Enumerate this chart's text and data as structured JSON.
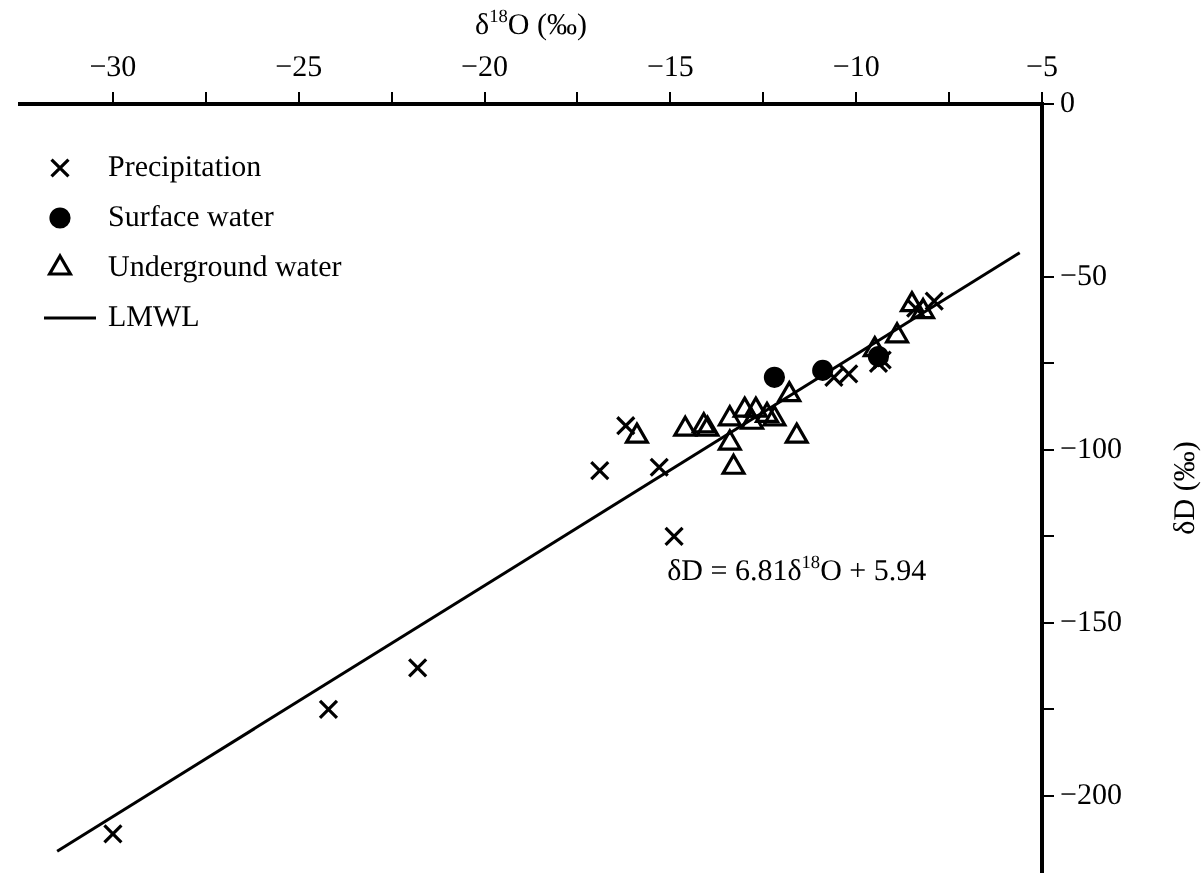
{
  "chart_data": {
    "type": "scatter",
    "xlabel": "δ$^{18}$O (‰)",
    "ylabel": "δD (‰)",
    "xlim": [
      -32.5,
      -5
    ],
    "xticks": [
      -30,
      {
        "value": -27.5,
        "label": null
      },
      -25,
      {
        "value": -22.5,
        "label": null
      },
      -20,
      {
        "value": -17.5,
        "label": null
      },
      -15,
      {
        "value": -12.5,
        "label": null
      },
      -10,
      {
        "value": -7.5,
        "label": null
      },
      -5
    ],
    "ylim": [
      -222,
      0
    ],
    "yticks": [
      0,
      -50,
      {
        "value": -75,
        "label": null
      },
      -100,
      {
        "value": -125,
        "label": null
      },
      -150,
      {
        "value": -175,
        "label": null
      },
      -200
    ],
    "grid": false,
    "legend": "top left",
    "series": [
      {
        "name": "Precipitation",
        "type": "scatter",
        "marker": "cross",
        "color": "#000000",
        "x": [
          -30,
          -24.2,
          -21.8,
          -16.9,
          -15.3,
          -14.9,
          -16.2,
          -8.4,
          -7.9,
          -9.4,
          -10.2,
          -10.6,
          -9.3
        ],
        "values": [
          -211,
          -175,
          -163,
          -106,
          -105,
          -125,
          -93,
          -59,
          -57,
          -75,
          -78,
          -79,
          -74
        ]
      },
      {
        "name": "Surface water",
        "type": "scatter",
        "marker": "circle",
        "color": "#000000",
        "x": [
          -12.2,
          -10.9,
          -9.4
        ],
        "values": [
          -79,
          -77,
          -73
        ]
      },
      {
        "name": "Underground water",
        "type": "scatter",
        "marker": "triangle",
        "color": "#000000",
        "x": [
          -15.9,
          -14.6,
          -14.1,
          -14.0,
          -13.4,
          -13.0,
          -12.7,
          -12.8,
          -13.4,
          -13.3,
          -12.2,
          -12.4,
          -11.8,
          -11.6,
          -9.5,
          -8.9,
          -8.2,
          -8.5
        ],
        "values": [
          -96,
          -94,
          -93,
          -94,
          -91,
          -88.5,
          -88.5,
          -92,
          -98,
          -105,
          -91,
          -90,
          -84,
          -96,
          -71,
          -67,
          -60,
          -58
        ]
      },
      {
        "name": "LMWL",
        "type": "line",
        "marker": "none",
        "line_style": "solid",
        "color": "#000000",
        "x": [
          -31.5,
          -5.6
        ],
        "values": [
          -216,
          -43
        ]
      }
    ],
    "annotations": [
      "δD = 6.81δ$^{18}$O + 5.94"
    ]
  }
}
